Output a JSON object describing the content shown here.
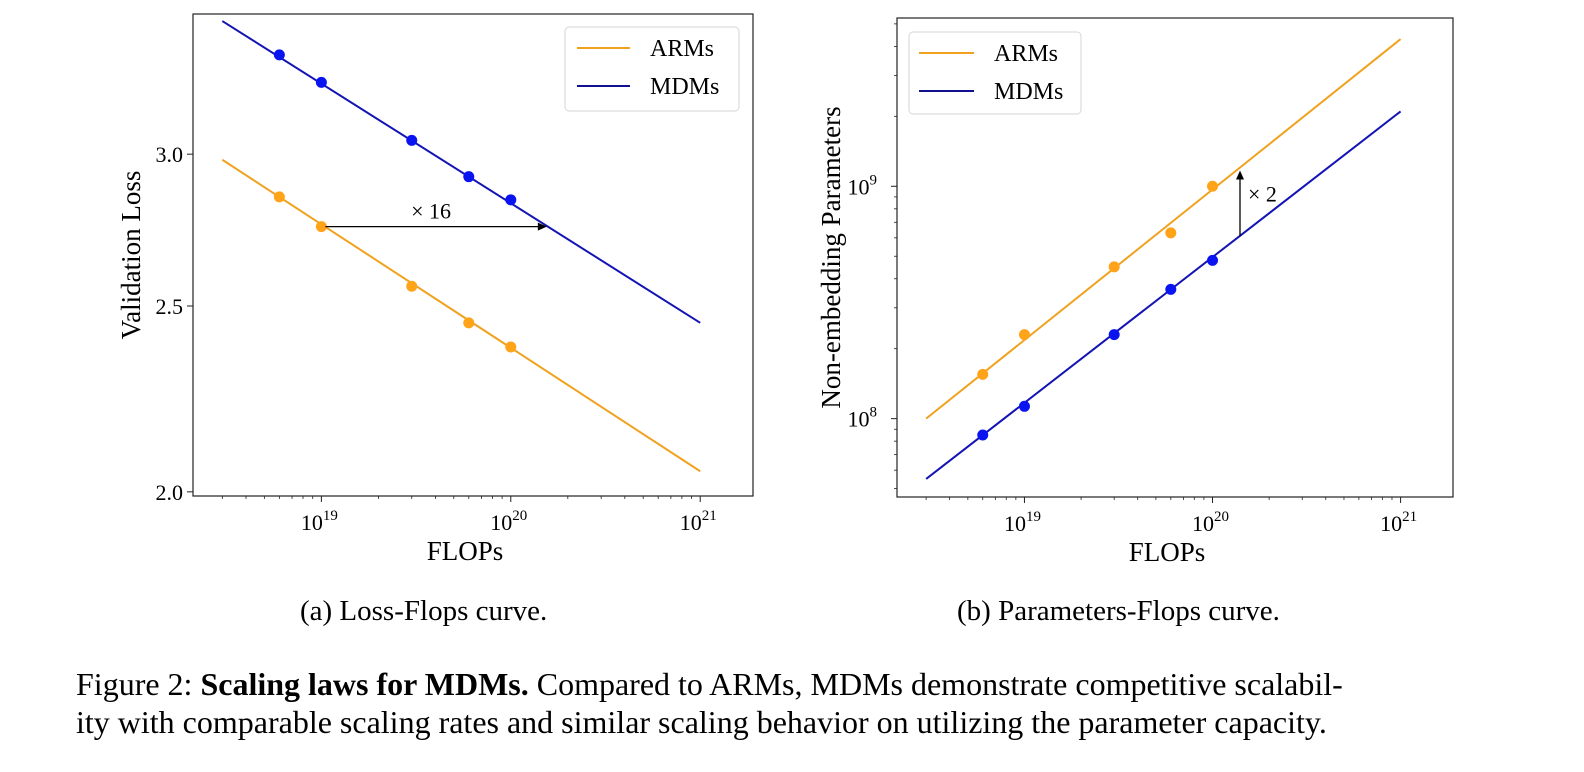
{
  "chart_data": [
    {
      "type": "line",
      "id": "a",
      "title": "",
      "xlabel": "FLOPs",
      "ylabel": "Validation Loss",
      "xscale": "log",
      "yscale": "log",
      "xlim": [
        2.1e+18,
        1.9e+21
      ],
      "ylim": [
        1.99,
        3.55
      ],
      "xticks": [
        {
          "value": 1e+19,
          "base": "10",
          "exp": "19"
        },
        {
          "value": 1e+20,
          "base": "10",
          "exp": "20"
        },
        {
          "value": 1e+21,
          "base": "10",
          "exp": "21"
        }
      ],
      "yticks": [
        {
          "value": 2.0,
          "label": "2.0"
        },
        {
          "value": 2.5,
          "label": "2.5"
        },
        {
          "value": 3.0,
          "label": "3.0"
        }
      ],
      "grid": false,
      "legend": {
        "placement": "top-right",
        "entries": [
          "ARMs",
          "MDMs"
        ]
      },
      "series": [
        {
          "name": "ARMs",
          "color": "#f0a21e",
          "marker_color": "#ffa318",
          "fit_line": {
            "x": [
              3e+18,
              1e+21
            ],
            "y": [
              2.98,
              2.05
            ]
          },
          "points": {
            "x": [
              6e+18,
              1e+19,
              3e+19,
              6e+19,
              1e+20
            ],
            "y": [
              2.85,
              2.75,
              2.56,
              2.45,
              2.38
            ]
          }
        },
        {
          "name": "MDMs",
          "color": "#1414b4",
          "marker_color": "#0a14f0",
          "fit_line": {
            "x": [
              3e+18,
              1e+21
            ],
            "y": [
              3.52,
              2.45
            ]
          },
          "points": {
            "x": [
              6e+18,
              1e+19,
              3e+19,
              6e+19,
              1e+20
            ],
            "y": [
              3.38,
              3.27,
              3.05,
              2.92,
              2.84
            ]
          }
        }
      ],
      "annotation": {
        "text": "× 16",
        "direction": "horizontal",
        "from": [
          1.05e+19,
          2.75
        ],
        "to": [
          1.55e+20,
          2.75
        ]
      }
    },
    {
      "type": "line",
      "id": "b",
      "title": "",
      "xlabel": "FLOPs",
      "ylabel": "Non-embedding Parameters",
      "xscale": "log",
      "yscale": "log",
      "xlim": [
        2.1e+18,
        1.9e+21
      ],
      "ylim": [
        46000000.0,
        5300000000.0
      ],
      "xticks": [
        {
          "value": 1e+19,
          "base": "10",
          "exp": "19"
        },
        {
          "value": 1e+20,
          "base": "10",
          "exp": "20"
        },
        {
          "value": 1e+21,
          "base": "10",
          "exp": "21"
        }
      ],
      "yticks": [
        {
          "value": 100000000.0,
          "base": "10",
          "exp": "8"
        },
        {
          "value": 1000000000.0,
          "base": "10",
          "exp": "9"
        }
      ],
      "grid": false,
      "legend": {
        "placement": "top-left",
        "entries": [
          "ARMs",
          "MDMs"
        ]
      },
      "series": [
        {
          "name": "ARMs",
          "color": "#f0a21e",
          "marker_color": "#ffa318",
          "fit_line": {
            "x": [
              3e+18,
              1e+21
            ],
            "y": [
              100000000.0,
              4300000000.0
            ]
          },
          "points": {
            "x": [
              6e+18,
              1e+19,
              3e+19,
              6e+19,
              1e+20
            ],
            "y": [
              155000000.0,
              230000000.0,
              450000000.0,
              630000000.0,
              1000000000.0
            ]
          }
        },
        {
          "name": "MDMs",
          "color": "#1414b4",
          "marker_color": "#0a14f0",
          "fit_line": {
            "x": [
              3e+18,
              1e+21
            ],
            "y": [
              55000000.0,
              2100000000.0
            ]
          },
          "points": {
            "x": [
              6e+18,
              1e+19,
              3e+19,
              6e+19,
              1e+20
            ],
            "y": [
              85000000.0,
              113000000.0,
              230000000.0,
              360000000.0,
              480000000.0
            ]
          }
        }
      ],
      "annotation": {
        "text": "× 2",
        "direction": "vertical",
        "from": [
          1.4e+20,
          610000000.0
        ],
        "to": [
          1.4e+20,
          1170000000.0
        ]
      }
    }
  ],
  "subcaptions": {
    "a": "(a) Loss-Flops curve.",
    "b": "(b) Parameters-Flops curve."
  },
  "caption": {
    "label": "Figure 2:",
    "bold": "Scaling laws for MDMs.",
    "text": "Compared to ARMs, MDMs demonstrate competitive scalability with comparable scaling rates and similar scaling behavior on utilizing the parameter capacity.",
    "line1_rest": "Compared to ARMs, MDMs demonstrate competitive scalabil-",
    "line2": "ity with comparable scaling rates and similar scaling behavior on utilizing the parameter capacity."
  }
}
